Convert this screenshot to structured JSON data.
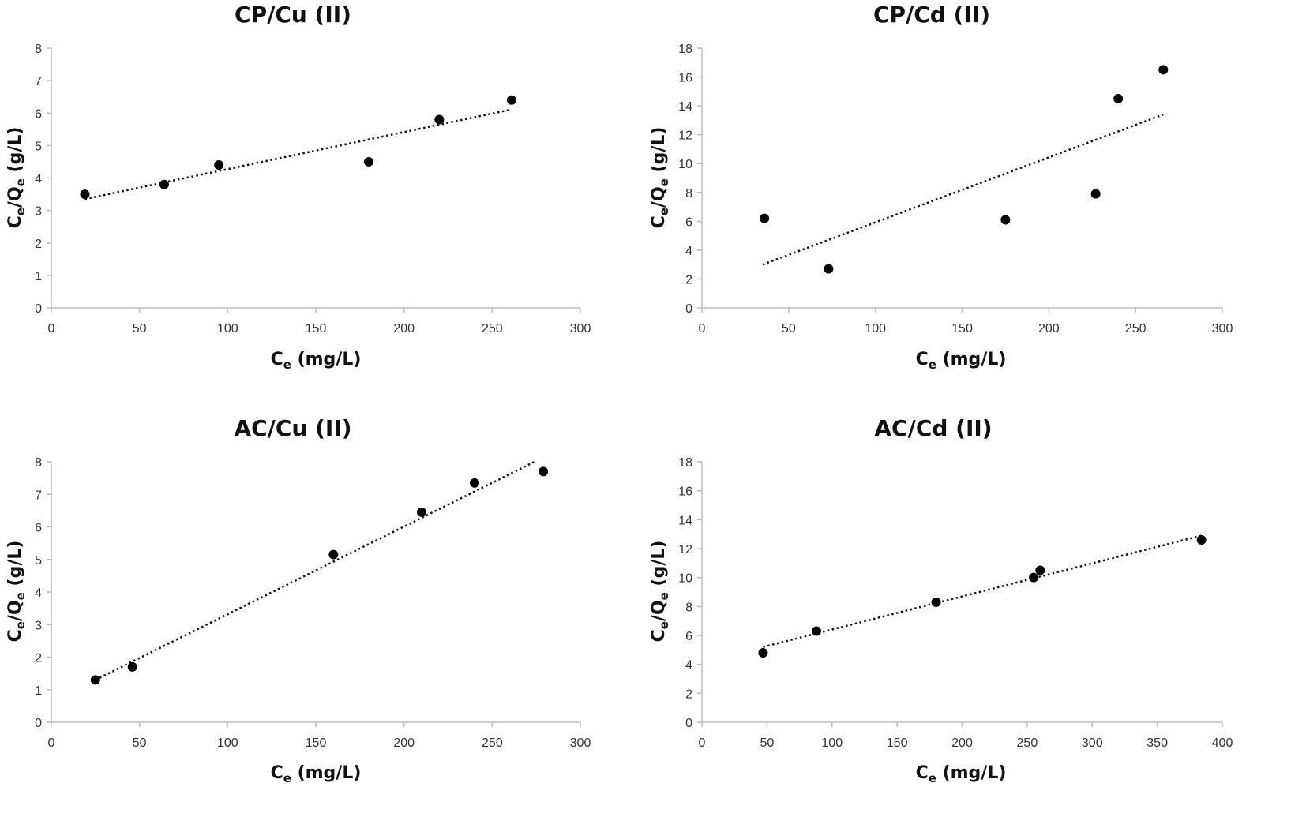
{
  "chart_data": [
    {
      "type": "scatter",
      "title": "CP/Cu (II)",
      "xlabel": "Ce (mg/L)",
      "ylabel": "Ce/Qe (g/L)",
      "xlim": [
        0,
        300
      ],
      "xticks": [
        0,
        50,
        100,
        150,
        200,
        250,
        300
      ],
      "ylim": [
        0,
        8
      ],
      "yticks": [
        0,
        1,
        2,
        3,
        4,
        5,
        6,
        7,
        8
      ],
      "x": [
        19,
        64,
        95,
        180,
        220,
        261
      ],
      "y": [
        3.5,
        3.8,
        4.4,
        4.5,
        5.8,
        6.4
      ],
      "trendline": {
        "style": "dotted",
        "x": [
          19,
          260
        ],
        "y": [
          3.35,
          6.1
        ]
      }
    },
    {
      "type": "scatter",
      "title": "CP/Cd (II)",
      "xlabel": "Ce (mg/L)",
      "ylabel": "Ce/Qe (g/L)",
      "xlim": [
        0,
        300
      ],
      "xticks": [
        0,
        50,
        100,
        150,
        200,
        250,
        300
      ],
      "ylim": [
        0,
        18
      ],
      "yticks": [
        0,
        2,
        4,
        6,
        8,
        10,
        12,
        14,
        16,
        18
      ],
      "x": [
        36,
        73,
        175,
        227,
        240,
        266
      ],
      "y": [
        6.2,
        2.7,
        6.1,
        7.9,
        14.5,
        16.5
      ],
      "trendline": {
        "style": "dotted",
        "x": [
          35,
          266
        ],
        "y": [
          3.0,
          13.4
        ]
      }
    },
    {
      "type": "scatter",
      "title": "AC/Cu (II)",
      "xlabel": "Ce (mg/L)",
      "ylabel": "Ce/Qe (g/L)",
      "xlim": [
        0,
        300
      ],
      "xticks": [
        0,
        50,
        100,
        150,
        200,
        250,
        300
      ],
      "ylim": [
        0,
        8
      ],
      "yticks": [
        0,
        1,
        2,
        3,
        4,
        5,
        6,
        7,
        8
      ],
      "x": [
        25,
        46,
        160,
        210,
        240,
        279
      ],
      "y": [
        1.3,
        1.7,
        5.15,
        6.45,
        7.35,
        7.7
      ],
      "trendline": {
        "style": "dotted",
        "x": [
          25,
          274
        ],
        "y": [
          1.3,
          8.0
        ]
      }
    },
    {
      "type": "scatter",
      "title": "AC/Cd (II)",
      "xlabel": "Ce (mg/L)",
      "ylabel": "Ce/Qe (g/L)",
      "xlim": [
        0,
        400
      ],
      "xticks": [
        0,
        50,
        100,
        150,
        200,
        250,
        300,
        350,
        400
      ],
      "ylim": [
        0,
        18
      ],
      "yticks": [
        0,
        2,
        4,
        6,
        8,
        10,
        12,
        14,
        16,
        18
      ],
      "x": [
        47,
        88,
        180,
        255,
        260,
        384
      ],
      "y": [
        4.8,
        6.3,
        8.3,
        10.0,
        10.5,
        12.6
      ],
      "trendline": {
        "style": "dotted",
        "x": [
          47,
          384
        ],
        "y": [
          5.2,
          12.9
        ]
      }
    }
  ]
}
